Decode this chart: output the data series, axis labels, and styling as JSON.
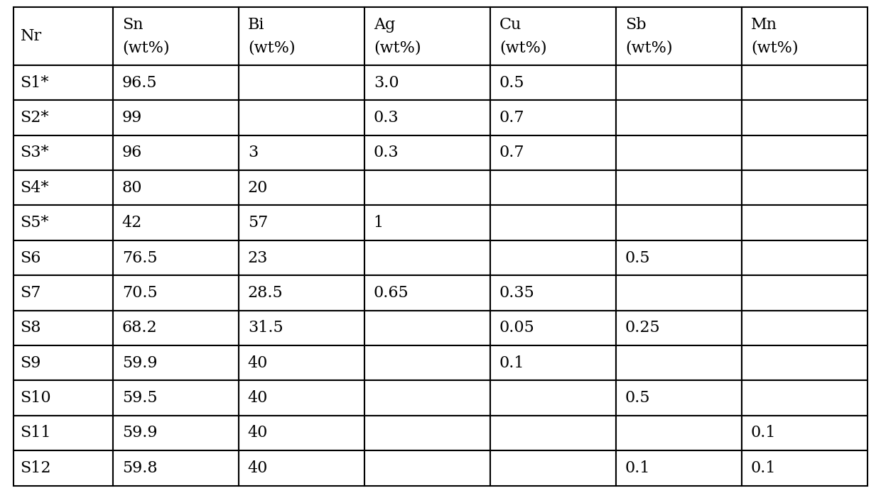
{
  "headers": [
    "Nr",
    "Sn\n(wt%)",
    "Bi\n(wt%)",
    "Ag\n(wt%)",
    "Cu\n(wt%)",
    "Sb\n(wt%)",
    "Mn\n(wt%)"
  ],
  "rows": [
    [
      "S1*",
      "96.5",
      "",
      "3.0",
      "0.5",
      "",
      ""
    ],
    [
      "S2*",
      "99",
      "",
      "0.3",
      "0.7",
      "",
      ""
    ],
    [
      "S3*",
      "96",
      "3",
      "0.3",
      "0.7",
      "",
      ""
    ],
    [
      "S4*",
      "80",
      "20",
      "",
      "",
      "",
      ""
    ],
    [
      "S5*",
      "42",
      "57",
      "1",
      "",
      "",
      ""
    ],
    [
      "S6",
      "76.5",
      "23",
      "",
      "",
      "0.5",
      ""
    ],
    [
      "S7",
      "70.5",
      "28.5",
      "0.65",
      "0.35",
      "",
      ""
    ],
    [
      "S8",
      "68.2",
      "31.5",
      "",
      "0.05",
      "0.25",
      ""
    ],
    [
      "S9",
      "59.9",
      "40",
      "",
      "0.1",
      "",
      ""
    ],
    [
      "S10",
      "59.5",
      "40",
      "",
      "",
      "0.5",
      ""
    ],
    [
      "S11",
      "59.9",
      "40",
      "",
      "",
      "",
      "0.1"
    ],
    [
      "S12",
      "59.8",
      "40",
      "",
      "",
      "0.1",
      "0.1"
    ]
  ],
  "background_color": "#ffffff",
  "border_color": "#000000",
  "text_color": "#000000",
  "font_size": 16,
  "header_font_size": 16,
  "fig_width": 12.4,
  "fig_height": 6.95,
  "dpi": 100
}
